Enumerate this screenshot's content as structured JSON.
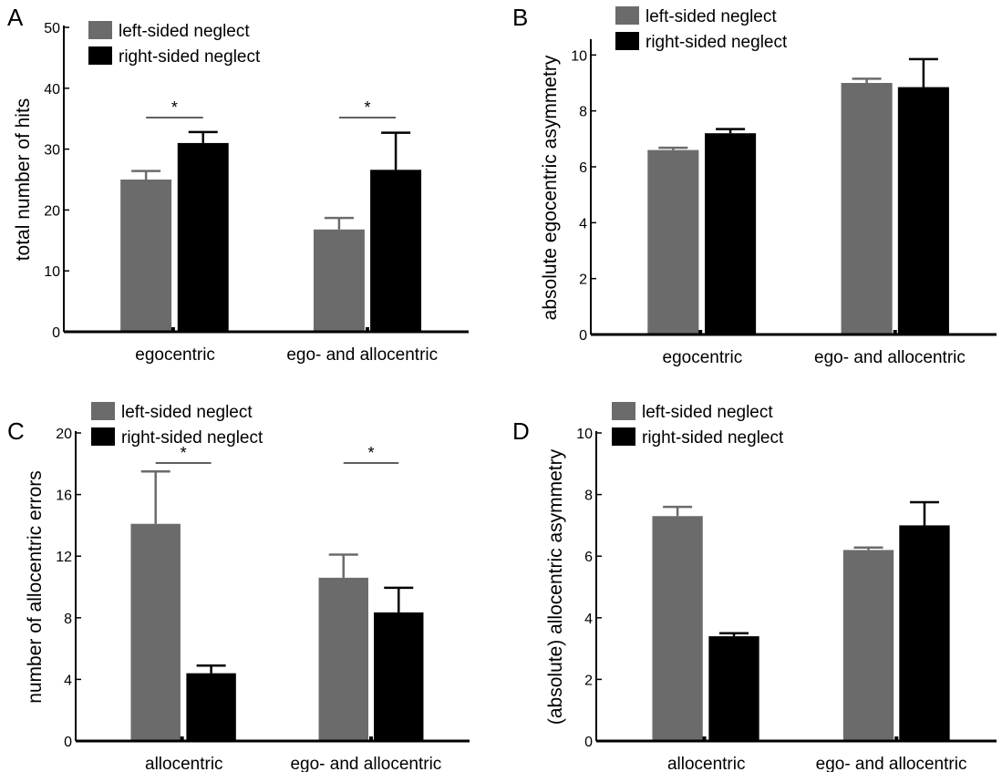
{
  "colors": {
    "left": "#6b6b6b",
    "right": "#000000",
    "axis": "#000000"
  },
  "chart_data": [
    {
      "panel": "A",
      "type": "bar",
      "ylabel": "total number of hits",
      "xlabel": "",
      "ylim": [
        0,
        50
      ],
      "yticks": [
        "0",
        "10",
        "20",
        "30",
        "40",
        "50"
      ],
      "categories": [
        "egocentric",
        "ego- and allocentric"
      ],
      "series": [
        {
          "name": "left-sided neglect",
          "color_key": "left",
          "values": [
            25,
            16.8
          ],
          "errors": [
            1.4,
            1.9
          ]
        },
        {
          "name": "right-sided neglect",
          "color_key": "right",
          "values": [
            31,
            26.6
          ],
          "errors": [
            1.8,
            6.1
          ]
        }
      ],
      "significance": [
        {
          "category_index": 0,
          "label": "*"
        },
        {
          "category_index": 1,
          "label": "*"
        }
      ],
      "legend": "top-left"
    },
    {
      "panel": "B",
      "type": "bar",
      "ylabel": "absolute egocentric asymmetry",
      "xlabel": "",
      "ylim": [
        0,
        10.5
      ],
      "yticks": [
        "0",
        "2",
        "4",
        "6",
        "8",
        "10"
      ],
      "categories": [
        "egocentric",
        "ego- and allocentric"
      ],
      "series": [
        {
          "name": "left-sided neglect",
          "color_key": "left",
          "values": [
            6.6,
            9.0
          ],
          "errors": [
            0.08,
            0.15
          ]
        },
        {
          "name": "right-sided neglect",
          "color_key": "right",
          "values": [
            7.2,
            8.85
          ],
          "errors": [
            0.15,
            1.0
          ]
        }
      ],
      "significance": [],
      "legend": "top-left"
    },
    {
      "panel": "C",
      "type": "bar",
      "ylabel": "number of allocentric errors",
      "xlabel": "",
      "ylim": [
        0,
        20
      ],
      "yticks": [
        "0",
        "4",
        "8",
        "12",
        "16",
        "20"
      ],
      "categories": [
        "allocentric",
        "ego- and allocentric"
      ],
      "series": [
        {
          "name": "left-sided neglect",
          "color_key": "left",
          "values": [
            14.1,
            10.6
          ],
          "errors": [
            3.4,
            1.5
          ]
        },
        {
          "name": "right-sided neglect",
          "color_key": "right",
          "values": [
            4.4,
            8.35
          ],
          "errors": [
            0.5,
            1.6
          ]
        }
      ],
      "significance": [
        {
          "category_index": 0,
          "label": "*"
        },
        {
          "category_index": 1,
          "label": "*"
        }
      ],
      "legend": "top-left"
    },
    {
      "panel": "D",
      "type": "bar",
      "ylabel": "(absolute) allocentric asymmetry",
      "xlabel": "",
      "ylim": [
        0,
        10
      ],
      "yticks": [
        "0",
        "2",
        "4",
        "6",
        "8",
        "10"
      ],
      "categories": [
        "allocentric",
        "ego- and allocentric"
      ],
      "series": [
        {
          "name": "left-sided neglect",
          "color_key": "left",
          "values": [
            7.3,
            6.2
          ],
          "errors": [
            0.3,
            0.08
          ]
        },
        {
          "name": "right-sided neglect",
          "color_key": "right",
          "values": [
            3.4,
            7.0
          ],
          "errors": [
            0.1,
            0.75
          ]
        }
      ],
      "significance": [],
      "legend": "top-left"
    }
  ]
}
